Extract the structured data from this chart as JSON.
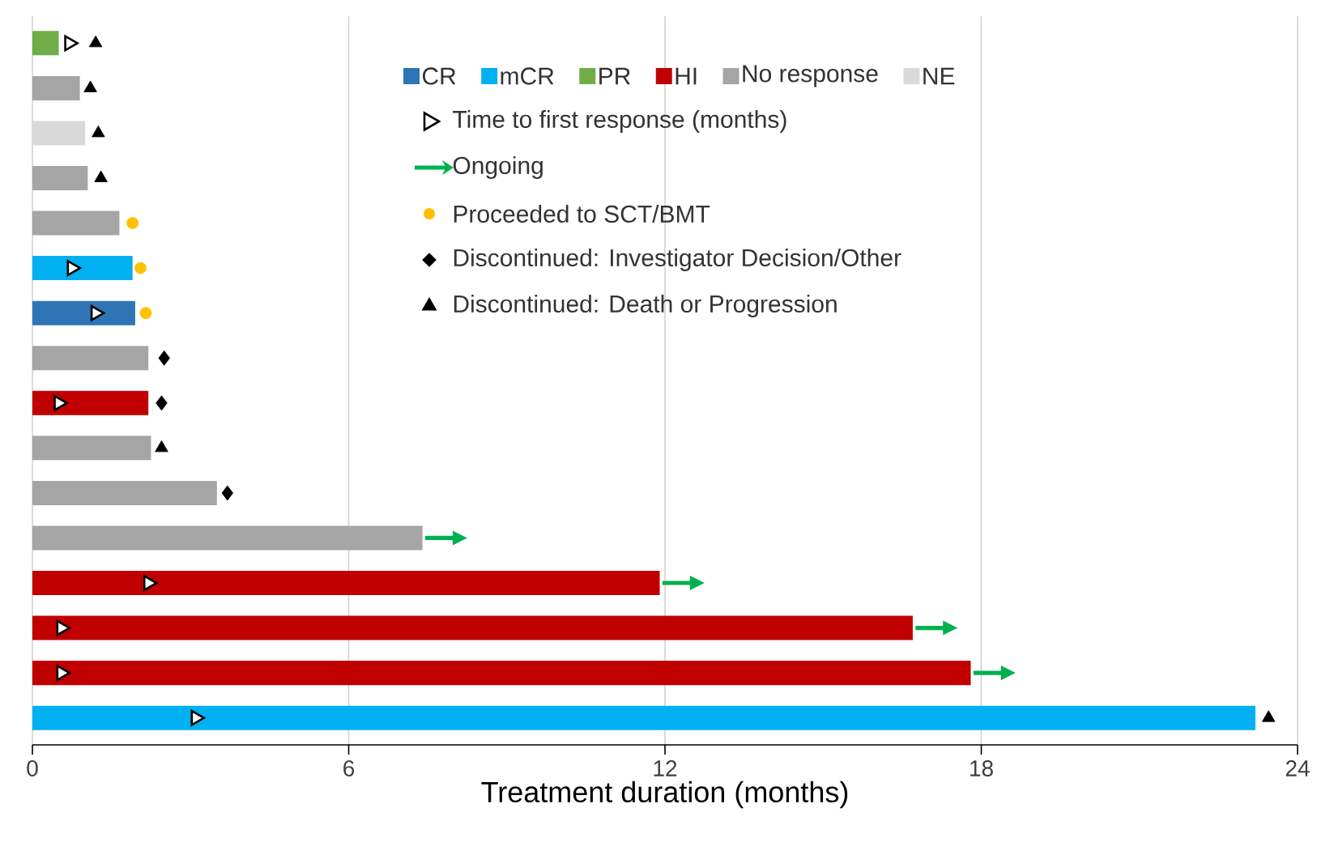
{
  "chart_data": {
    "type": "bar",
    "orientation": "horizontal",
    "xlabel": "Treatment duration (months)",
    "categories": [
      null,
      null,
      null,
      null,
      null,
      null,
      null,
      null,
      null,
      null,
      null,
      null,
      null,
      null,
      null,
      null
    ],
    "xlim": [
      0,
      24
    ],
    "xticks": [
      0,
      6,
      12,
      18,
      24
    ],
    "grid": "x",
    "legend": "top right",
    "series": [
      {
        "name": "CR",
        "color": "#2e75b6",
        "values": [
          null,
          null,
          null,
          null,
          null,
          null,
          1.95,
          null,
          null,
          null,
          null,
          null,
          null,
          null,
          null,
          null
        ]
      },
      {
        "name": "mCR",
        "color": "#00b0f0",
        "values": [
          null,
          null,
          null,
          null,
          null,
          1.9,
          null,
          null,
          null,
          null,
          null,
          null,
          null,
          null,
          null,
          23.2
        ]
      },
      {
        "name": "PR",
        "color": "#70ad47",
        "values": [
          0.5,
          null,
          null,
          null,
          null,
          null,
          null,
          null,
          null,
          null,
          null,
          null,
          null,
          null,
          null,
          null
        ]
      },
      {
        "name": "HI",
        "color": "#c00000",
        "values": [
          null,
          null,
          null,
          null,
          null,
          null,
          null,
          null,
          2.2,
          null,
          null,
          null,
          11.9,
          16.7,
          17.8,
          null
        ]
      },
      {
        "name": "No response",
        "color": "#a5a5a5",
        "values": [
          null,
          0.9,
          null,
          1.05,
          1.65,
          null,
          null,
          2.2,
          null,
          2.25,
          3.5,
          7.4,
          null,
          null,
          null,
          null
        ]
      },
      {
        "name": "NE",
        "color": "#d9d9d9",
        "values": [
          null,
          null,
          1.0,
          null,
          null,
          null,
          null,
          null,
          null,
          null,
          null,
          null,
          null,
          null,
          null,
          null
        ]
      },
      {
        "name": "Time to first response (months)",
        "type": "scatter",
        "marker": "triangle",
        "color": "#ffffff",
        "values": [
          0.7,
          null,
          null,
          null,
          null,
          0.75,
          1.2,
          null,
          0.5,
          null,
          null,
          null,
          2.2,
          0.55,
          0.55,
          3.1
        ]
      },
      {
        "name": "Ongoing",
        "type": "scatter",
        "color": "#00b050",
        "values": [
          null,
          null,
          null,
          null,
          null,
          null,
          null,
          null,
          null,
          null,
          null,
          7.85,
          12.35,
          17.15,
          18.25,
          null
        ]
      },
      {
        "name": "Proceeded to SCT/BMT",
        "type": "scatter",
        "marker": "circle",
        "color": "#ffc000",
        "values": [
          null,
          null,
          null,
          null,
          1.9,
          2.05,
          2.15,
          null,
          null,
          null,
          null,
          null,
          null,
          null,
          null,
          null
        ]
      },
      {
        "name": "Discontinued: Investigator Decision/Other",
        "type": "scatter",
        "marker": "diamond",
        "color": "#000000",
        "values": [
          null,
          null,
          null,
          null,
          null,
          null,
          null,
          2.5,
          2.45,
          null,
          3.7,
          null,
          null,
          null,
          null,
          null
        ]
      },
      {
        "name": "Discontinued: Death or Progression",
        "type": "scatter",
        "marker": "triangle",
        "color": "#000000",
        "values": [
          1.2,
          1.1,
          1.25,
          1.3,
          null,
          null,
          null,
          null,
          null,
          2.45,
          null,
          null,
          null,
          null,
          null,
          23.45
        ]
      }
    ]
  }
}
